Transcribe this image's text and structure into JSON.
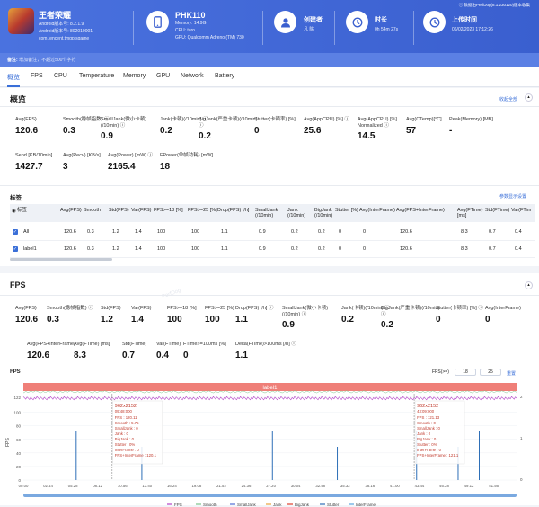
{
  "header": {
    "app_name": "王者荣耀",
    "android_version": "Android版本号: 8.2.1.9",
    "android_build": "Android版本号: 802010001",
    "package": "com.tencent.tmgp.sgame",
    "device": "PHK110",
    "memory": "Memory: 14.9G",
    "cpu": "CPU: taro",
    "gpu": "GPU: Qualcomm Adreno (TM) 730",
    "creator_label": "创建者",
    "creator_value": "凡 陈",
    "duration_label": "时长",
    "duration_value": "0h 54m 27s",
    "upload_label": "上传时间",
    "upload_value": "06/02/2023 17:12:26",
    "data_source": "数据由PerfDog(8.1.230120)版本收集"
  },
  "notes": {
    "label": "备注:",
    "placeholder": "增加备注，不超过500个字符"
  },
  "tabs": [
    "概览",
    "FPS",
    "CPU",
    "Temperature",
    "Memory",
    "GPU",
    "Network",
    "Battery"
  ],
  "overview": {
    "title": "概览",
    "stats_row1": [
      {
        "label": "Avg(FPS)",
        "value": "120.6"
      },
      {
        "label": "Smooth(稳帧指数) ⓘ",
        "value": "0.3"
      },
      {
        "label": "SmallJank(微小卡顿)(/10min) ⓘ",
        "value": "0.9"
      },
      {
        "label": "Jank(卡顿)(/10min) ⓘ",
        "value": "0.2"
      },
      {
        "label": "BigJank(严重卡顿)(/10min) ⓘ",
        "value": "0.2"
      },
      {
        "label": "Stutter(卡顿率) [%]",
        "value": "0"
      },
      {
        "label": "Avg(AppCPU) [%] ⓘ",
        "value": "25.6"
      },
      {
        "label": "Avg(AppCPU) [%] Normalized ⓘ",
        "value": "14.5"
      },
      {
        "label": "Avg(CTemp)[°C]",
        "value": "57"
      },
      {
        "label": "Peak(Memory) [MB]",
        "value": "-"
      }
    ],
    "stats_row2": [
      {
        "label": "Send [KB/10min]",
        "value": "1427.7"
      },
      {
        "label": "Avg(Recv) [KB/s]",
        "value": "3"
      },
      {
        "label": "Avg(Power) [mW] ⓘ",
        "value": "2165.4"
      },
      {
        "label": "FPower(单帧功耗) [mW]",
        "value": "18"
      }
    ],
    "label_title": "标签",
    "settings_link": "参数显示设置",
    "collapse": "收起全部",
    "table_headers": [
      "标签",
      "Avg(FPS)",
      "Smooth",
      "Std(FPS)",
      "Var(FPS)",
      "FPS>=18 [%]",
      "FPS>=25 [%]",
      "Drop(FPS) [/h]",
      "SmallJank (/10min)",
      "Jank (/10min)",
      "BigJank (/10min)",
      "Stutter [%]",
      "Avg(InterFrame)",
      "Avg(FPS+InterFrame)",
      "Avg(FTime) [ms]",
      "Std(FTime)",
      "Var(FTim"
    ],
    "rows": [
      {
        "name": "All",
        "values": [
          "120.6",
          "0.3",
          "1.2",
          "1.4",
          "100",
          "100",
          "1.1",
          "0.9",
          "0.2",
          "0.2",
          "0",
          "0",
          "120.6",
          "8.3",
          "0.7",
          "0.4"
        ]
      },
      {
        "name": "label1",
        "values": [
          "120.6",
          "0.3",
          "1.2",
          "1.4",
          "100",
          "100",
          "1.1",
          "0.9",
          "0.2",
          "0.2",
          "0",
          "0",
          "120.6",
          "8.3",
          "0.7",
          "0.4"
        ]
      }
    ]
  },
  "fps": {
    "title": "FPS",
    "stats_row1": [
      {
        "label": "Avg(FPS)",
        "value": "120.6"
      },
      {
        "label": "Smooth(稳帧指数) ⓘ",
        "value": "0.3"
      },
      {
        "label": "Std(FPS)",
        "value": "1.2"
      },
      {
        "label": "Var(FPS)",
        "value": "1.4"
      },
      {
        "label": "FPS>=18 [%]",
        "value": "100"
      },
      {
        "label": "FPS>=25 [%]",
        "value": "100"
      },
      {
        "label": "Drop(FPS) [/h] ⓘ",
        "value": "1.1"
      },
      {
        "label": "SmallJank(微小卡顿)(/10min) ⓘ",
        "value": "0.9"
      },
      {
        "label": "Jank(卡顿)(/10min) ⓘ",
        "value": "0.2"
      },
      {
        "label": "BigJank(严重卡顿)(/10min) ⓘ",
        "value": "0.2"
      },
      {
        "label": "Stutter(卡顿率) [%] ⓘ",
        "value": "0"
      },
      {
        "label": "Avg(InterFrame)",
        "value": "0"
      }
    ],
    "stats_row2": [
      {
        "label": "Avg(FPS+InterFrame)",
        "value": "120.6"
      },
      {
        "label": "Avg(FTime) [ms]",
        "value": "8.3"
      },
      {
        "label": "Std(FTime)",
        "value": "0.7"
      },
      {
        "label": "Var(FTime)",
        "value": "0.4"
      },
      {
        "label": "FTime>=100ms [%]",
        "value": "0"
      },
      {
        "label": "Delta(FTime)>100ms [/h] ⓘ",
        "value": "1.1"
      }
    ],
    "chart_label": "FPS",
    "fps_threshold_label": "FPS(>=)",
    "fps_threshold_1": "18",
    "fps_threshold_2": "25",
    "reset": "重置",
    "band_label": "label1",
    "watermark": "PerfDog"
  },
  "chart_data": {
    "type": "line",
    "x_ticks": [
      "00:00",
      "02:44",
      "05:28",
      "08:12",
      "10:56",
      "13:40",
      "16:24",
      "19:08",
      "21:52",
      "24:36",
      "27:20",
      "30:04",
      "32:48",
      "35:32",
      "38:16",
      "41:00",
      "43:44",
      "46:28",
      "49:12",
      "51:56"
    ],
    "y_ticks": [
      "0",
      "20",
      "40",
      "60",
      "80",
      "100",
      "122"
    ],
    "y2_ticks": [
      "0",
      "1",
      "2"
    ],
    "ylabel": "FPS",
    "series": [
      {
        "name": "FPS",
        "color": "#b443c8"
      },
      {
        "name": "Smooth",
        "color": "#7cc38a"
      },
      {
        "name": "SmallJank",
        "color": "#4f6fd6"
      },
      {
        "name": "Jank",
        "color": "#e8a33c"
      },
      {
        "name": "BigJank",
        "color": "#e0402e"
      },
      {
        "name": "Stutter",
        "color": "#2e6fb7"
      },
      {
        "name": "InterFrame",
        "color": "#5aa5e0"
      }
    ],
    "fps_level": 120.6,
    "jank_spikes_at": [
      "05:50",
      "13:05",
      "27:30",
      "34:40",
      "43:25",
      "48:00",
      "50:20"
    ],
    "tooltip1": {
      "header": "962x2152",
      "time": "09:48:000",
      "lines": [
        "FPS : 120.11",
        "Smooth : 5.75",
        "SmallJank : 0",
        "Jank : 0",
        "BigJank : 0",
        "Stutter : 0%",
        "InterFrame : 0",
        "FPS+InterFrame : 120.1"
      ]
    },
    "tooltip2": {
      "header": "962x2152",
      "time": "43:09:000",
      "lines": [
        "FPS : 121.13",
        "Smooth : 0",
        "SmallJank : 0",
        "Jank : 0",
        "BigJank : 0",
        "Stutter : 0%",
        "InterFrame : 0",
        "FPS+InterFrame : 121.1"
      ]
    }
  }
}
